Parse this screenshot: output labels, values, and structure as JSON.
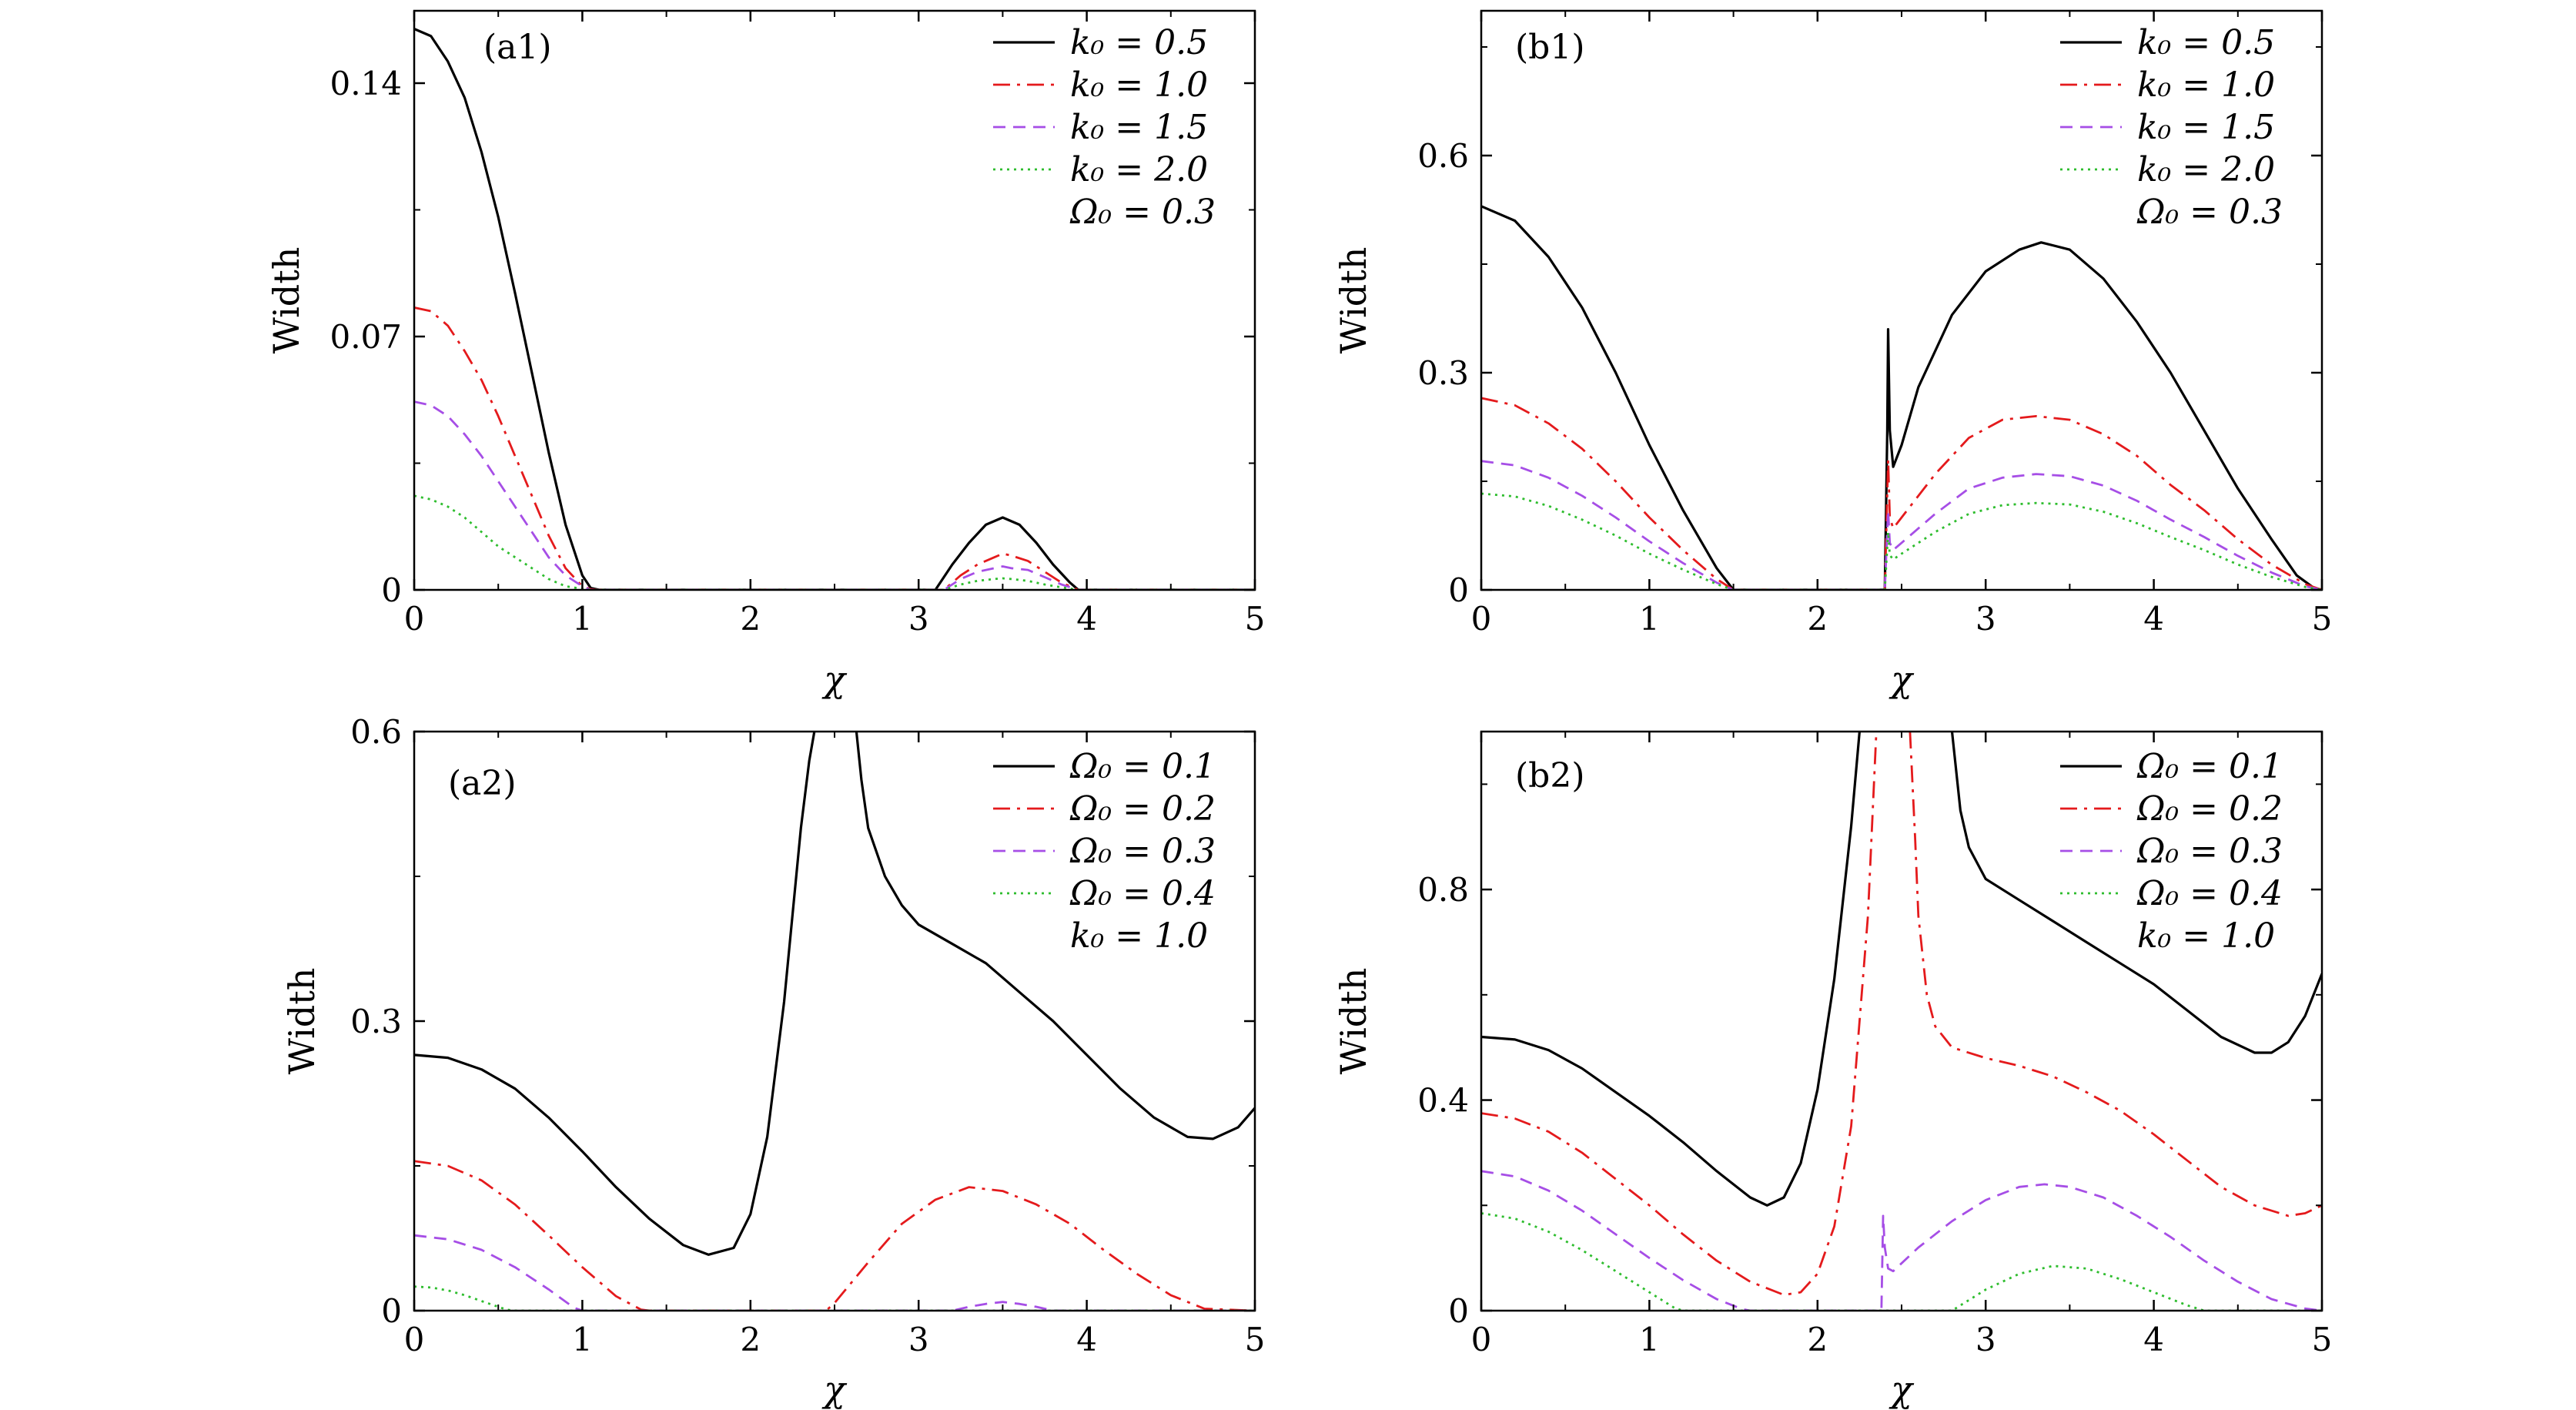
{
  "colors": {
    "black": "#000000",
    "red": "#e41a1c",
    "purple": "#a64ee6",
    "green": "#2ebd2e"
  },
  "chart_data": [
    {
      "id": "a1",
      "type": "line",
      "tag": "(a1)",
      "xlabel": "χ",
      "ylabel": "Width",
      "xlim": [
        0,
        5
      ],
      "ylim": [
        0,
        0.16
      ],
      "xticks": [
        "0",
        "1",
        "2",
        "3",
        "4",
        "5"
      ],
      "yticks": [
        {
          "v": 0,
          "label": "0"
        },
        {
          "v": 0.07,
          "label": "0.07"
        },
        {
          "v": 0.14,
          "label": "0.14"
        }
      ],
      "legend": [
        "k₀ = 0.5",
        "k₀ = 1.0",
        "k₀ = 1.5",
        "k₀ = 2.0",
        "Ω₀ = 0.3"
      ],
      "series": [
        {
          "name": "k₀ = 0.5",
          "style": "solid",
          "color": "black",
          "x": [
            0,
            0.1,
            0.2,
            0.3,
            0.4,
            0.5,
            0.6,
            0.7,
            0.8,
            0.9,
            1.0,
            1.05,
            1.1,
            3.1,
            3.2,
            3.3,
            3.4,
            3.5,
            3.6,
            3.7,
            3.8,
            3.9,
            3.95,
            5
          ],
          "y": [
            0.155,
            0.153,
            0.146,
            0.136,
            0.121,
            0.103,
            0.082,
            0.06,
            0.038,
            0.018,
            0.004,
            0.0005,
            0,
            0,
            0.007,
            0.013,
            0.018,
            0.02,
            0.018,
            0.013,
            0.007,
            0.002,
            0,
            0
          ]
        },
        {
          "name": "k₀ = 1.0",
          "style": "dashdot",
          "color": "red",
          "x": [
            0,
            0.1,
            0.2,
            0.3,
            0.4,
            0.5,
            0.6,
            0.7,
            0.8,
            0.9,
            1.0,
            1.05,
            1.1,
            3.15,
            3.25,
            3.35,
            3.45,
            3.5,
            3.55,
            3.65,
            3.75,
            3.85,
            3.95,
            5
          ],
          "y": [
            0.078,
            0.077,
            0.073,
            0.066,
            0.058,
            0.048,
            0.037,
            0.026,
            0.015,
            0.006,
            0.001,
            0.0002,
            0,
            0,
            0.004,
            0.007,
            0.009,
            0.01,
            0.0095,
            0.008,
            0.005,
            0.002,
            0,
            0
          ]
        },
        {
          "name": "k₀ = 1.5",
          "style": "dashed",
          "color": "purple",
          "x": [
            0,
            0.1,
            0.2,
            0.3,
            0.4,
            0.5,
            0.6,
            0.7,
            0.8,
            0.9,
            1.0,
            1.05,
            1.1,
            3.15,
            3.25,
            3.35,
            3.45,
            3.5,
            3.55,
            3.65,
            3.75,
            3.85,
            3.95,
            5
          ],
          "y": [
            0.052,
            0.051,
            0.048,
            0.043,
            0.037,
            0.03,
            0.023,
            0.016,
            0.009,
            0.004,
            0.001,
            0,
            0,
            0,
            0.003,
            0.005,
            0.006,
            0.0065,
            0.006,
            0.0055,
            0.0035,
            0.0015,
            0,
            0
          ]
        },
        {
          "name": "k₀ = 2.0",
          "style": "dotted",
          "color": "green",
          "x": [
            0,
            0.1,
            0.2,
            0.3,
            0.4,
            0.5,
            0.6,
            0.7,
            0.8,
            0.9,
            1.0,
            1.05,
            1.1,
            3.15,
            3.25,
            3.35,
            3.45,
            3.5,
            3.55,
            3.65,
            3.75,
            3.85,
            3.95,
            5
          ],
          "y": [
            0.026,
            0.025,
            0.023,
            0.02,
            0.016,
            0.012,
            0.009,
            0.006,
            0.003,
            0.001,
            0.0003,
            0,
            0,
            0,
            0.0015,
            0.0025,
            0.003,
            0.0032,
            0.003,
            0.0025,
            0.0015,
            0.0007,
            0,
            0
          ]
        }
      ]
    },
    {
      "id": "b1",
      "type": "line",
      "tag": "(b1)",
      "xlabel": "χ",
      "ylabel": "Width",
      "xlim": [
        0,
        5
      ],
      "ylim": [
        0,
        0.8
      ],
      "xticks": [
        "0",
        "1",
        "2",
        "3",
        "4",
        "5"
      ],
      "yticks": [
        {
          "v": 0,
          "label": "0"
        },
        {
          "v": 0.3,
          "label": "0.3"
        },
        {
          "v": 0.6,
          "label": "0.6"
        }
      ],
      "legend": [
        "k₀ = 0.5",
        "k₀ = 1.0",
        "k₀ = 1.5",
        "k₀ = 2.0",
        "Ω₀ = 0.3"
      ],
      "series": [
        {
          "name": "k₀ = 0.5",
          "style": "solid",
          "color": "black",
          "x": [
            0,
            0.2,
            0.4,
            0.6,
            0.8,
            1.0,
            1.2,
            1.4,
            1.5,
            2.4,
            2.415,
            2.42,
            2.43,
            2.45,
            2.5,
            2.6,
            2.8,
            3.0,
            3.2,
            3.33,
            3.5,
            3.7,
            3.9,
            4.1,
            4.3,
            4.5,
            4.7,
            4.85,
            4.95,
            5
          ],
          "y": [
            0.53,
            0.51,
            0.46,
            0.39,
            0.3,
            0.2,
            0.11,
            0.03,
            0,
            0,
            0.22,
            0.36,
            0.22,
            0.17,
            0.2,
            0.28,
            0.38,
            0.44,
            0.47,
            0.48,
            0.47,
            0.43,
            0.37,
            0.3,
            0.22,
            0.14,
            0.07,
            0.02,
            0.003,
            0
          ]
        },
        {
          "name": "k₀ = 1.0",
          "style": "dashdot",
          "color": "red",
          "x": [
            0,
            0.2,
            0.4,
            0.6,
            0.8,
            1.0,
            1.2,
            1.4,
            1.5,
            2.4,
            2.42,
            2.43,
            2.45,
            2.5,
            2.7,
            2.9,
            3.1,
            3.3,
            3.5,
            3.7,
            3.9,
            4.1,
            4.3,
            4.5,
            4.7,
            4.9,
            5
          ],
          "y": [
            0.265,
            0.255,
            0.23,
            0.195,
            0.15,
            0.1,
            0.055,
            0.015,
            0,
            0,
            0.18,
            0.1,
            0.085,
            0.1,
            0.16,
            0.21,
            0.235,
            0.24,
            0.235,
            0.215,
            0.185,
            0.145,
            0.11,
            0.07,
            0.035,
            0.008,
            0
          ]
        },
        {
          "name": "k₀ = 1.5",
          "style": "dashed",
          "color": "purple",
          "x": [
            0,
            0.2,
            0.4,
            0.6,
            0.8,
            1.0,
            1.2,
            1.4,
            1.5,
            2.4,
            2.42,
            2.43,
            2.45,
            2.5,
            2.7,
            2.9,
            3.1,
            3.3,
            3.5,
            3.7,
            3.9,
            4.1,
            4.3,
            4.5,
            4.7,
            4.9,
            5
          ],
          "y": [
            0.178,
            0.172,
            0.155,
            0.13,
            0.1,
            0.067,
            0.037,
            0.01,
            0,
            0,
            0.11,
            0.065,
            0.055,
            0.065,
            0.105,
            0.14,
            0.155,
            0.16,
            0.157,
            0.144,
            0.123,
            0.097,
            0.073,
            0.047,
            0.024,
            0.005,
            0
          ]
        },
        {
          "name": "k₀ = 2.0",
          "style": "dotted",
          "color": "green",
          "x": [
            0,
            0.2,
            0.4,
            0.6,
            0.8,
            1.0,
            1.2,
            1.4,
            1.5,
            2.4,
            2.42,
            2.43,
            2.45,
            2.5,
            2.7,
            2.9,
            3.1,
            3.3,
            3.5,
            3.7,
            3.9,
            4.1,
            4.3,
            4.5,
            4.7,
            4.9,
            5
          ],
          "y": [
            0.133,
            0.129,
            0.116,
            0.097,
            0.075,
            0.05,
            0.028,
            0.008,
            0,
            0,
            0.08,
            0.048,
            0.042,
            0.05,
            0.08,
            0.105,
            0.117,
            0.12,
            0.118,
            0.108,
            0.092,
            0.073,
            0.055,
            0.035,
            0.018,
            0.004,
            0
          ]
        }
      ]
    },
    {
      "id": "a2",
      "type": "line",
      "tag": "(a2)",
      "xlabel": "χ",
      "ylabel": "Width",
      "xlim": [
        0,
        5
      ],
      "ylim": [
        0,
        0.6
      ],
      "xticks": [
        "0",
        "1",
        "2",
        "3",
        "4",
        "5"
      ],
      "yticks": [
        {
          "v": 0,
          "label": "0"
        },
        {
          "v": 0.3,
          "label": "0.3"
        },
        {
          "v": 0.6,
          "label": "0.6"
        }
      ],
      "legend": [
        "Ω₀ = 0.1",
        "Ω₀ = 0.2",
        "Ω₀ = 0.3",
        "Ω₀ = 0.4",
        "k₀ = 1.0"
      ],
      "series": [
        {
          "name": "Ω₀ = 0.1",
          "style": "solid",
          "color": "black",
          "x": [
            0,
            0.2,
            0.4,
            0.6,
            0.8,
            1.0,
            1.2,
            1.4,
            1.6,
            1.75,
            1.9,
            2.0,
            2.1,
            2.2,
            2.3,
            2.35,
            2.38,
            null,
            2.63,
            2.66,
            2.7,
            2.8,
            2.9,
            3.0,
            3.2,
            3.4,
            3.6,
            3.8,
            4.0,
            4.2,
            4.4,
            4.6,
            4.75,
            4.9,
            5.0
          ],
          "y": [
            0.265,
            0.262,
            0.25,
            0.23,
            0.2,
            0.165,
            0.128,
            0.095,
            0.068,
            0.058,
            0.065,
            0.1,
            0.18,
            0.32,
            0.5,
            0.57,
            0.6,
            null,
            0.6,
            0.55,
            0.5,
            0.45,
            0.42,
            0.4,
            0.38,
            0.36,
            0.33,
            0.3,
            0.265,
            0.23,
            0.2,
            0.18,
            0.178,
            0.19,
            0.21
          ]
        },
        {
          "name": "Ω₀ = 0.2",
          "style": "dashdot",
          "color": "red",
          "x": [
            0,
            0.2,
            0.4,
            0.6,
            0.8,
            1.0,
            1.2,
            1.35,
            1.4,
            2.45,
            2.5,
            2.7,
            2.9,
            3.1,
            3.3,
            3.5,
            3.7,
            3.9,
            4.1,
            4.3,
            4.5,
            4.7,
            5
          ],
          "y": [
            0.155,
            0.15,
            0.135,
            0.11,
            0.078,
            0.045,
            0.015,
            0.001,
            0,
            0,
            0.008,
            0.05,
            0.09,
            0.115,
            0.128,
            0.124,
            0.11,
            0.09,
            0.063,
            0.038,
            0.016,
            0.002,
            0
          ]
        },
        {
          "name": "Ω₀ = 0.3",
          "style": "dashed",
          "color": "purple",
          "x": [
            0,
            0.2,
            0.4,
            0.6,
            0.8,
            0.95,
            1.0,
            3.2,
            3.3,
            3.4,
            3.5,
            3.6,
            3.7,
            3.8,
            5
          ],
          "y": [
            0.078,
            0.074,
            0.063,
            0.045,
            0.022,
            0.003,
            0,
            0,
            0.004,
            0.007,
            0.009,
            0.007,
            0.004,
            0,
            0
          ]
        },
        {
          "name": "Ω₀ = 0.4",
          "style": "dotted",
          "color": "green",
          "x": [
            0,
            0.1,
            0.2,
            0.3,
            0.4,
            0.5,
            0.55,
            0.6,
            5
          ],
          "y": [
            0.025,
            0.024,
            0.021,
            0.016,
            0.01,
            0.004,
            0.001,
            0,
            0
          ]
        }
      ]
    },
    {
      "id": "b2",
      "type": "line",
      "tag": "(b2)",
      "xlabel": "χ",
      "ylabel": "Width",
      "xlim": [
        0,
        5
      ],
      "ylim": [
        0,
        1.1
      ],
      "xticks": [
        "0",
        "1",
        "2",
        "3",
        "4",
        "5"
      ],
      "yticks": [
        {
          "v": 0,
          "label": "0"
        },
        {
          "v": 0.4,
          "label": "0.4"
        },
        {
          "v": 0.8,
          "label": "0.8"
        }
      ],
      "legend": [
        "Ω₀ = 0.1",
        "Ω₀ = 0.2",
        "Ω₀ = 0.3",
        "Ω₀ = 0.4",
        "k₀ = 1.0"
      ],
      "series": [
        {
          "name": "Ω₀ = 0.1",
          "style": "solid",
          "color": "black",
          "x": [
            0,
            0.2,
            0.4,
            0.6,
            0.8,
            1.0,
            1.2,
            1.4,
            1.6,
            1.7,
            1.8,
            1.9,
            2.0,
            2.1,
            2.2,
            2.25,
            null,
            2.8,
            2.85,
            2.9,
            3.0,
            3.2,
            3.4,
            3.6,
            3.8,
            4.0,
            4.2,
            4.4,
            4.6,
            4.7,
            4.8,
            4.9,
            5.0
          ],
          "y": [
            0.52,
            0.515,
            0.495,
            0.46,
            0.415,
            0.37,
            0.32,
            0.265,
            0.215,
            0.2,
            0.215,
            0.28,
            0.42,
            0.63,
            0.92,
            1.1,
            null,
            1.1,
            0.95,
            0.88,
            0.82,
            0.78,
            0.74,
            0.7,
            0.66,
            0.62,
            0.57,
            0.52,
            0.49,
            0.49,
            0.51,
            0.56,
            0.64
          ]
        },
        {
          "name": "Ω₀ = 0.2",
          "style": "dashdot",
          "color": "red",
          "x": [
            0,
            0.2,
            0.4,
            0.6,
            0.8,
            1.0,
            1.2,
            1.4,
            1.6,
            1.8,
            1.9,
            2.0,
            2.1,
            2.2,
            2.3,
            2.35,
            null,
            2.55,
            2.58,
            2.6,
            2.65,
            2.7,
            2.8,
            3.0,
            3.2,
            3.4,
            3.6,
            3.8,
            4.0,
            4.2,
            4.4,
            4.6,
            4.8,
            4.9,
            5.0
          ],
          "y": [
            0.375,
            0.365,
            0.34,
            0.3,
            0.25,
            0.2,
            0.145,
            0.095,
            0.055,
            0.03,
            0.035,
            0.07,
            0.16,
            0.35,
            0.75,
            1.1,
            null,
            1.1,
            0.9,
            0.75,
            0.6,
            0.54,
            0.5,
            0.48,
            0.465,
            0.445,
            0.415,
            0.38,
            0.335,
            0.285,
            0.235,
            0.2,
            0.18,
            0.185,
            0.2
          ]
        },
        {
          "name": "Ω₀ = 0.3",
          "style": "dashed",
          "color": "purple",
          "x": [
            0,
            0.2,
            0.4,
            0.6,
            0.8,
            1.0,
            1.2,
            1.4,
            1.55,
            1.6,
            2.38,
            2.39,
            2.4,
            2.42,
            2.45,
            2.6,
            2.8,
            3.0,
            3.2,
            3.35,
            3.5,
            3.7,
            3.9,
            4.1,
            4.3,
            4.5,
            4.7,
            4.9,
            5
          ],
          "y": [
            0.265,
            0.255,
            0.228,
            0.19,
            0.145,
            0.1,
            0.058,
            0.022,
            0.003,
            0,
            0,
            0.18,
            0.12,
            0.08,
            0.075,
            0.12,
            0.17,
            0.21,
            0.235,
            0.24,
            0.235,
            0.215,
            0.18,
            0.14,
            0.095,
            0.055,
            0.022,
            0.004,
            0
          ]
        },
        {
          "name": "Ω₀ = 0.4",
          "style": "dotted",
          "color": "green",
          "x": [
            0,
            0.2,
            0.4,
            0.6,
            0.8,
            1.0,
            1.15,
            1.2,
            2.8,
            2.9,
            3.0,
            3.2,
            3.4,
            3.6,
            3.8,
            4.0,
            4.2,
            4.3,
            5
          ],
          "y": [
            0.185,
            0.175,
            0.15,
            0.115,
            0.075,
            0.035,
            0.005,
            0,
            0,
            0.02,
            0.04,
            0.07,
            0.085,
            0.08,
            0.06,
            0.035,
            0.01,
            0,
            0
          ]
        }
      ]
    }
  ]
}
